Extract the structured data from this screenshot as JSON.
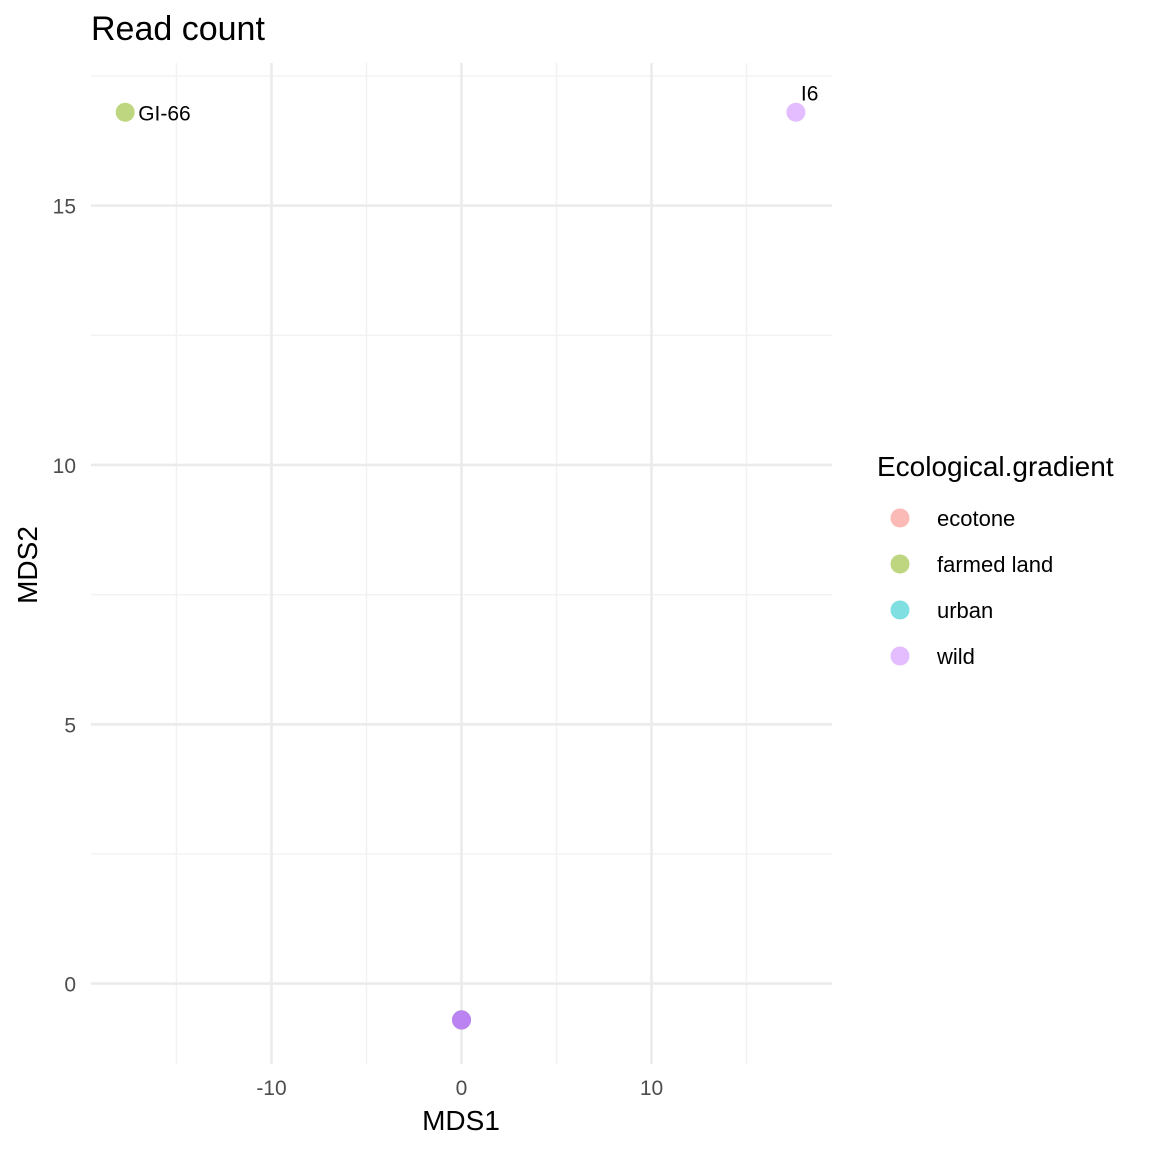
{
  "chart_data": {
    "type": "scatter",
    "title": "Read count",
    "xlabel": "MDS1",
    "ylabel": "MDS2",
    "xlim": [
      -19.5,
      19.5
    ],
    "ylim": [
      -1.55,
      17.75
    ],
    "x_ticks": [
      -10,
      0,
      10
    ],
    "y_ticks": [
      0,
      5,
      10,
      15
    ],
    "grid": true,
    "legend": {
      "title": "Ecological.gradient",
      "position": "right",
      "entries": [
        {
          "label": "ecotone",
          "color": "#F8766D"
        },
        {
          "label": "farmed land",
          "color": "#7CAE00"
        },
        {
          "label": "urban",
          "color": "#00BFC4"
        },
        {
          "label": "wild",
          "color": "#C77CFF"
        }
      ]
    },
    "points": [
      {
        "x": -17.7,
        "y": 16.8,
        "group": "farmed land",
        "label": "GI-66"
      },
      {
        "x": 17.6,
        "y": 16.8,
        "group": "wild",
        "label": "I6"
      },
      {
        "x": 0,
        "y": -0.7,
        "group": "ecotone",
        "label": ""
      },
      {
        "x": 0,
        "y": -0.7,
        "group": "farmed land",
        "label": ""
      },
      {
        "x": 0,
        "y": -0.7,
        "group": "urban",
        "label": ""
      },
      {
        "x": 0,
        "y": -0.7,
        "group": "wild",
        "label": ""
      },
      {
        "x": 0,
        "y": -0.7,
        "group": "wild",
        "label": ""
      },
      {
        "x": 0,
        "y": -0.7,
        "group": "wild",
        "label": ""
      }
    ]
  }
}
